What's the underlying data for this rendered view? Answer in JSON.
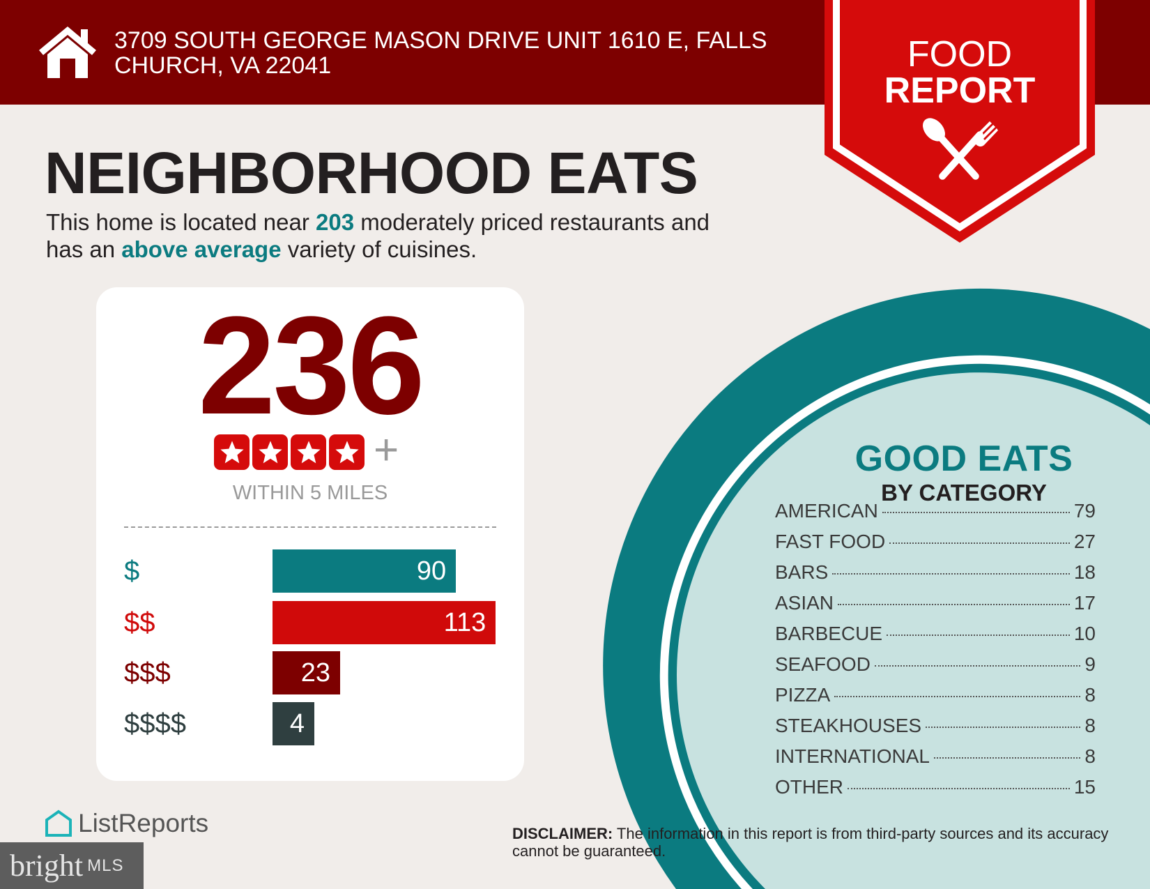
{
  "header": {
    "address_line1": "3709 SOUTH GEORGE MASON DRIVE UNIT 1610 E, FALLS",
    "address_line2": "CHURCH, VA 22041",
    "icon": "house-icon"
  },
  "badge": {
    "line1": "FOOD",
    "line2": "REPORT",
    "icon": "spoon-fork-icon",
    "color": "#d50b0b"
  },
  "title": "NEIGHBORHOOD EATS",
  "summary": {
    "pre": "This home is located near ",
    "count": "203",
    "mid1": " moderately priced restaurants and",
    "mid2": "has an ",
    "variety": "above average",
    "post": " variety of cuisines."
  },
  "card": {
    "total": "236",
    "star_rating": 4,
    "plus": "+",
    "radius_label": "WITHIN 5 MILES",
    "price_tiers": [
      {
        "label": "$",
        "count": 90,
        "color": "#0b7b80"
      },
      {
        "label": "$$",
        "count": 113,
        "color": "#d00a0a"
      },
      {
        "label": "$$$",
        "count": 23,
        "color": "#7d0000"
      },
      {
        "label": "$$$$",
        "count": 4,
        "color": "#2f3f40"
      }
    ]
  },
  "categories": {
    "title": "GOOD EATS",
    "subtitle": "BY CATEGORY",
    "items": [
      {
        "label": "AMERICAN",
        "count": "79"
      },
      {
        "label": "FAST FOOD",
        "count": "27"
      },
      {
        "label": "BARS",
        "count": "18"
      },
      {
        "label": "ASIAN",
        "count": "17"
      },
      {
        "label": "BARBECUE",
        "count": "10"
      },
      {
        "label": "SEAFOOD",
        "count": "9"
      },
      {
        "label": "PIZZA",
        "count": "8"
      },
      {
        "label": "STEAKHOUSES",
        "count": "8"
      },
      {
        "label": "INTERNATIONAL",
        "count": "8"
      },
      {
        "label": "OTHER",
        "count": "15"
      }
    ]
  },
  "disclaimer": {
    "label": "DISCLAIMER:",
    "text": " The information in this report is from third-party sources and its accuracy cannot be guaranteed."
  },
  "footer": {
    "listreports": "ListReports",
    "bright": "bright",
    "mls": "MLS"
  },
  "colors": {
    "header": "#7d0000",
    "teal": "#0b7b80",
    "plate_fill": "#c8e2e0",
    "background": "#f1edea"
  }
}
